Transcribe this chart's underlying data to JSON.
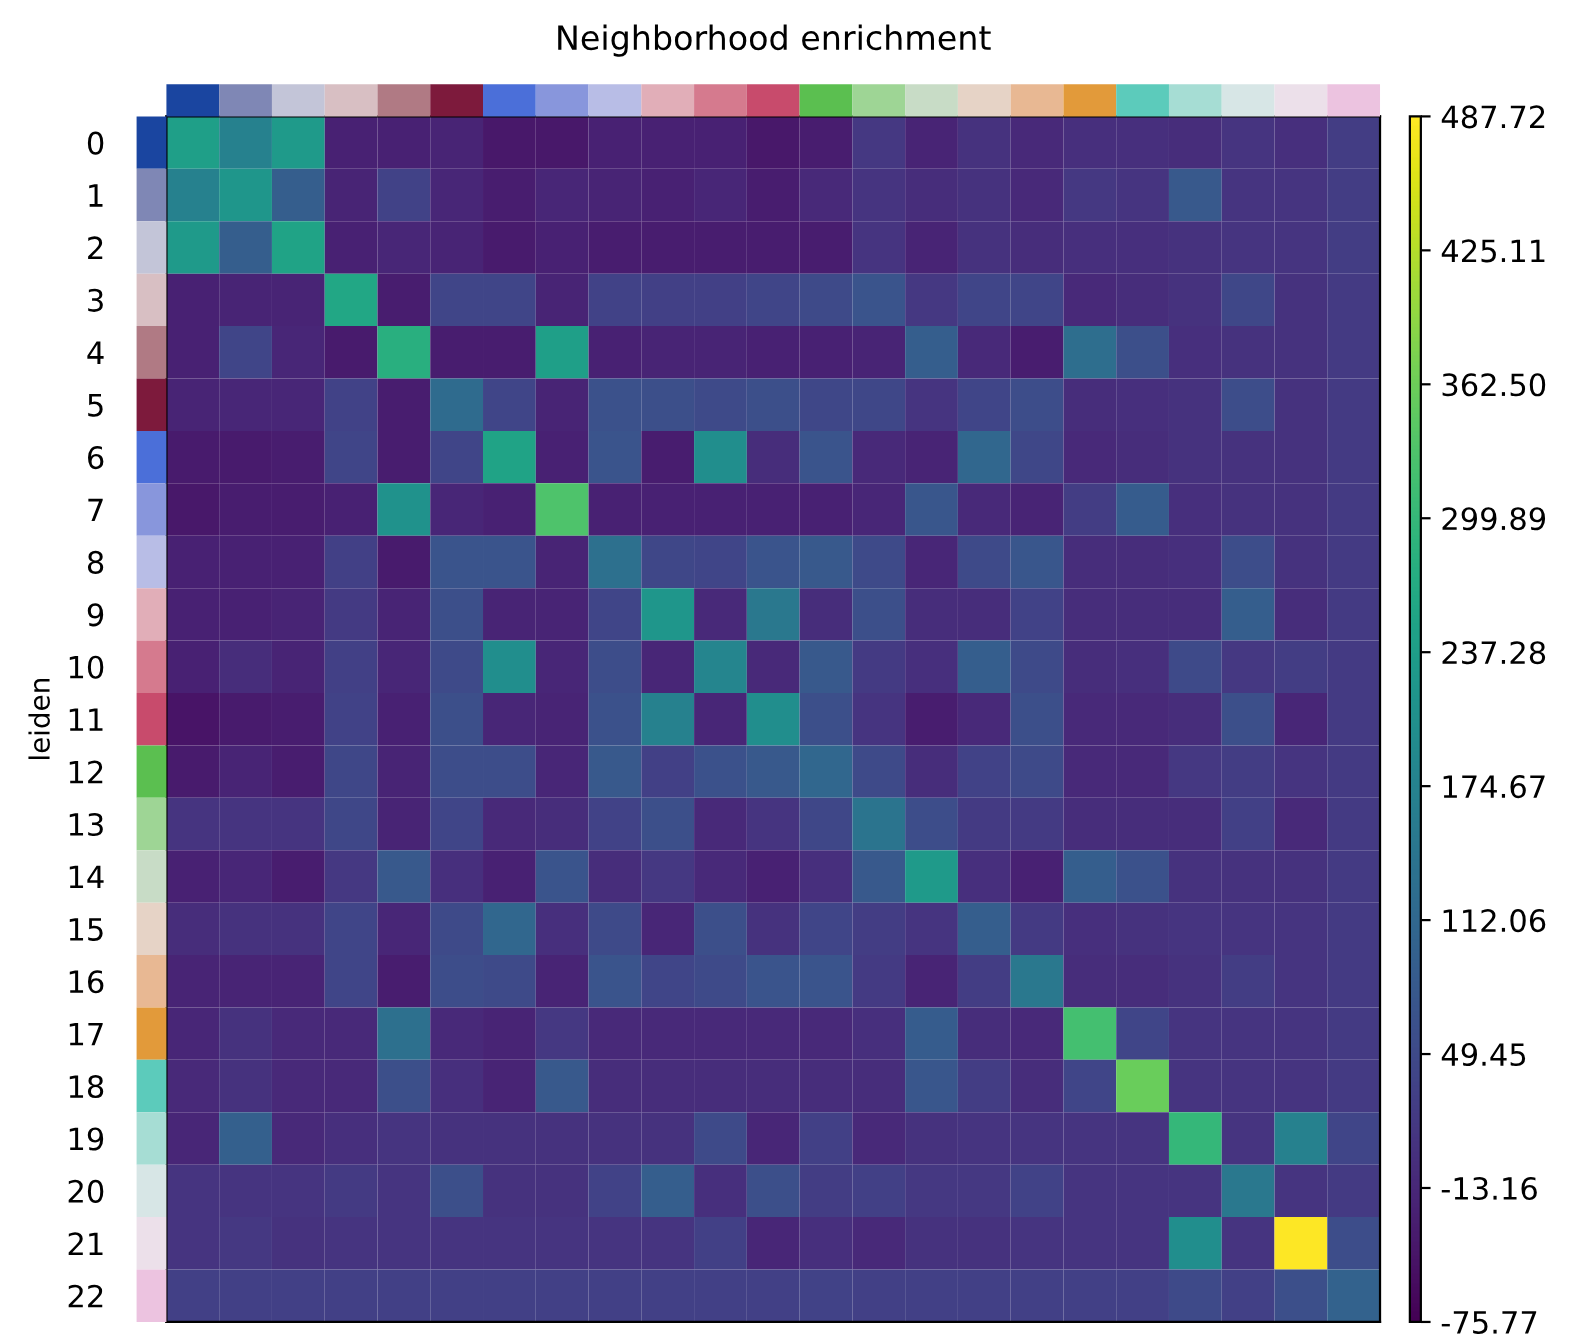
{
  "chart_data": {
    "type": "heatmap",
    "title": "Neighborhood enrichment",
    "ylabel": "leiden",
    "categories": [
      null,
      null,
      null,
      null,
      null,
      null,
      null,
      null,
      null,
      null,
      null,
      null,
      null,
      null,
      null,
      null,
      null,
      null,
      null,
      null,
      null,
      null,
      null
    ],
    "y_categories": [
      "0",
      "1",
      "2",
      "3",
      "4",
      "5",
      "6",
      "7",
      "8",
      "9",
      "10",
      "11",
      "12",
      "13",
      "14",
      "15",
      "16",
      "17",
      "18",
      "19",
      "20",
      "21",
      "22"
    ],
    "colors": [
      "#1a45a0",
      "#7f87b5",
      "#c3c5d8",
      "#d8bfc3",
      "#b07a84",
      "#7d1a3c",
      "#4b6fd9",
      "#8896dc",
      "#b8bde6",
      "#e1aeb8",
      "#d57a8e",
      "#c84b6c",
      "#5bbf50",
      "#9ed595",
      "#c8dcc6",
      "#e6d3c6",
      "#e8b893",
      "#e29a3a",
      "#5ccbbb",
      "#a6ddd4",
      "#d7e6e6",
      "#ece0ea",
      "#ecc3e0"
    ],
    "cells": [
      [
        240,
        170,
        230,
        -25,
        -25,
        -20,
        -40,
        -40,
        -25,
        -25,
        -25,
        -40,
        -30,
        15,
        -20,
        5,
        -10,
        0,
        0,
        -5,
        10,
        0,
        25
      ],
      [
        170,
        220,
        90,
        -20,
        35,
        -15,
        -30,
        -15,
        -20,
        -25,
        -15,
        -30,
        -10,
        10,
        -5,
        5,
        -10,
        15,
        10,
        80,
        10,
        10,
        25
      ],
      [
        230,
        90,
        250,
        -25,
        -15,
        -20,
        -35,
        -25,
        -30,
        -30,
        -30,
        -30,
        -30,
        10,
        -20,
        5,
        -5,
        0,
        0,
        5,
        10,
        10,
        25
      ],
      [
        -25,
        -20,
        -20,
        260,
        -30,
        40,
        40,
        -20,
        35,
        30,
        30,
        40,
        50,
        70,
        15,
        40,
        40,
        -10,
        -5,
        5,
        45,
        5,
        20
      ],
      [
        -25,
        40,
        -15,
        -35,
        280,
        -30,
        -30,
        240,
        -25,
        -20,
        -20,
        -25,
        -25,
        -20,
        90,
        -10,
        -30,
        125,
        60,
        0,
        5,
        5,
        20
      ],
      [
        -20,
        -15,
        -15,
        35,
        -30,
        120,
        40,
        -20,
        65,
        60,
        50,
        60,
        45,
        45,
        10,
        40,
        55,
        -5,
        0,
        5,
        55,
        5,
        20
      ],
      [
        -35,
        -35,
        -30,
        40,
        -30,
        40,
        250,
        -25,
        70,
        -30,
        200,
        -5,
        70,
        -10,
        -20,
        110,
        45,
        -10,
        -5,
        5,
        5,
        5,
        20
      ],
      [
        -40,
        -30,
        -30,
        -25,
        210,
        -15,
        -25,
        330,
        -25,
        -25,
        -25,
        -25,
        -25,
        -15,
        75,
        -10,
        -20,
        25,
        85,
        0,
        5,
        5,
        20
      ],
      [
        -25,
        -25,
        -25,
        30,
        -35,
        70,
        70,
        -20,
        130,
        45,
        40,
        70,
        80,
        50,
        -15,
        50,
        75,
        -5,
        -5,
        0,
        55,
        5,
        20
      ],
      [
        -25,
        -25,
        -20,
        20,
        -20,
        60,
        -20,
        -20,
        40,
        220,
        -10,
        150,
        -5,
        60,
        -5,
        -5,
        35,
        -5,
        -5,
        -5,
        90,
        -5,
        20
      ],
      [
        -25,
        -5,
        -20,
        30,
        -15,
        50,
        200,
        -15,
        55,
        -15,
        180,
        -10,
        80,
        20,
        0,
        90,
        50,
        -5,
        0,
        50,
        15,
        25,
        20
      ],
      [
        -45,
        -35,
        -30,
        35,
        -25,
        60,
        -15,
        -20,
        65,
        170,
        -15,
        200,
        60,
        10,
        -30,
        -10,
        60,
        -10,
        -10,
        -5,
        60,
        -15,
        20
      ],
      [
        -35,
        -20,
        -30,
        45,
        -20,
        55,
        55,
        -15,
        80,
        30,
        65,
        80,
        110,
        50,
        -5,
        35,
        50,
        -10,
        -10,
        15,
        25,
        10,
        20
      ],
      [
        10,
        10,
        10,
        45,
        -20,
        40,
        -10,
        -5,
        35,
        60,
        -10,
        10,
        45,
        140,
        55,
        20,
        20,
        -5,
        -5,
        -5,
        30,
        -10,
        20
      ],
      [
        -25,
        -15,
        -30,
        15,
        80,
        0,
        -25,
        70,
        -5,
        15,
        -10,
        -25,
        0,
        80,
        230,
        0,
        -25,
        90,
        65,
        5,
        5,
        5,
        20
      ],
      [
        -5,
        5,
        5,
        40,
        -15,
        50,
        110,
        0,
        50,
        -15,
        60,
        5,
        40,
        25,
        10,
        90,
        20,
        0,
        5,
        10,
        10,
        10,
        20
      ],
      [
        -20,
        -20,
        -20,
        40,
        -30,
        55,
        50,
        -20,
        70,
        40,
        50,
        70,
        70,
        20,
        -20,
        25,
        150,
        -5,
        -5,
        5,
        25,
        10,
        20
      ],
      [
        -15,
        5,
        -10,
        -10,
        130,
        -10,
        -20,
        15,
        -10,
        -10,
        -10,
        -10,
        -10,
        0,
        85,
        -5,
        -10,
        320,
        40,
        10,
        10,
        10,
        20
      ],
      [
        -10,
        5,
        -10,
        -10,
        60,
        0,
        -20,
        80,
        -5,
        -5,
        -5,
        -5,
        -5,
        -5,
        75,
        25,
        -5,
        40,
        360,
        10,
        10,
        10,
        20
      ],
      [
        -15,
        95,
        -10,
        0,
        10,
        5,
        5,
        5,
        5,
        5,
        50,
        -15,
        30,
        -10,
        5,
        10,
        10,
        10,
        10,
        300,
        10,
        170,
        40
      ],
      [
        10,
        10,
        10,
        20,
        10,
        60,
        5,
        5,
        35,
        90,
        0,
        60,
        25,
        30,
        15,
        15,
        35,
        10,
        10,
        10,
        150,
        10,
        20
      ],
      [
        10,
        15,
        5,
        10,
        10,
        10,
        10,
        10,
        10,
        10,
        30,
        -15,
        0,
        -10,
        5,
        5,
        10,
        10,
        10,
        200,
        10,
        487,
        55
      ],
      [
        30,
        30,
        30,
        30,
        30,
        30,
        30,
        30,
        30,
        30,
        30,
        30,
        35,
        30,
        30,
        30,
        30,
        30,
        30,
        50,
        30,
        60,
        100
      ]
    ],
    "clim": [
      -75.77,
      487.72
    ],
    "cticks": [
      {
        "value": -75.77,
        "label": "-75.77"
      },
      {
        "value": -13.16,
        "label": "-13.16"
      },
      {
        "value": 49.45,
        "label": "49.45"
      },
      {
        "value": 112.06,
        "label": "112.06"
      },
      {
        "value": 174.67,
        "label": "174.67"
      },
      {
        "value": 237.28,
        "label": "237.28"
      },
      {
        "value": 299.89,
        "label": "299.89"
      },
      {
        "value": 362.5,
        "label": "362.50"
      },
      {
        "value": 425.11,
        "label": "425.11"
      },
      {
        "value": 487.72,
        "label": "487.72"
      }
    ],
    "tick_labels": "y",
    "grid": false
  }
}
